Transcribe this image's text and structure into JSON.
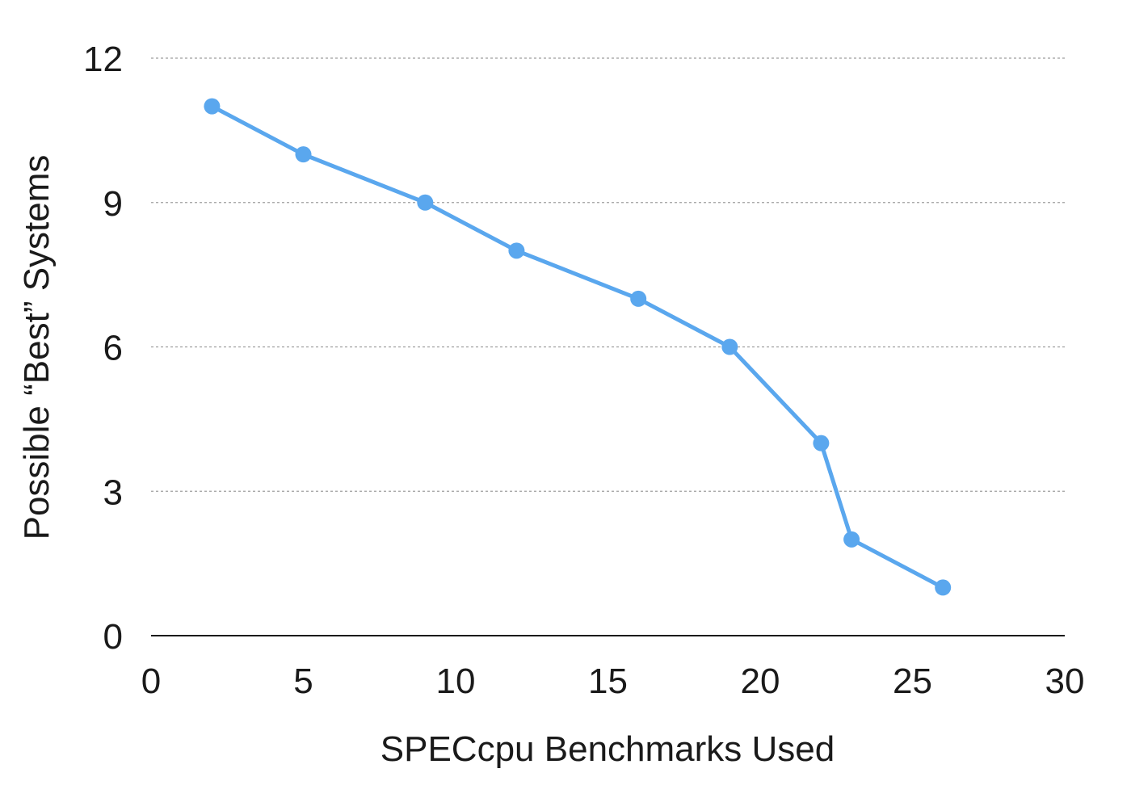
{
  "chart_data": {
    "type": "line",
    "title": "",
    "xlabel": "SPECcpu Benchmarks Used",
    "ylabel": "Possible “Best” Systems",
    "xlim": [
      0,
      30
    ],
    "ylim": [
      0,
      12
    ],
    "x_ticks": [
      "0",
      "5",
      "10",
      "15",
      "20",
      "25",
      "30"
    ],
    "y_ticks": [
      "0",
      "3",
      "6",
      "9",
      "12"
    ],
    "grid": true,
    "legend": "none",
    "series": [
      {
        "color": "#5aa7ee",
        "x": [
          2,
          5,
          9,
          12,
          16,
          19,
          22,
          23,
          26
        ],
        "y": [
          11,
          10,
          9,
          8,
          7,
          6,
          4,
          2,
          1
        ]
      }
    ]
  }
}
